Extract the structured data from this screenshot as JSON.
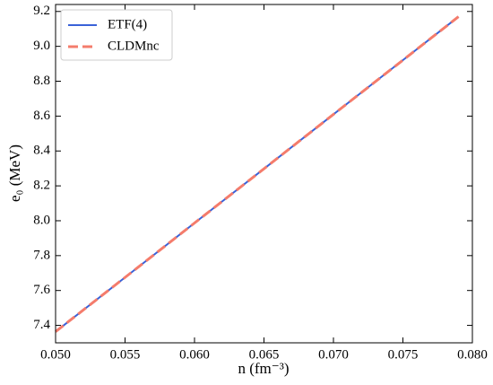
{
  "chart_data": {
    "type": "line",
    "xlabel": "n (fm⁻³)",
    "ylabel": "e₀ (MeV)",
    "x": [
      0.05,
      0.055,
      0.06,
      0.065,
      0.07,
      0.075,
      0.079
    ],
    "series": [
      {
        "name": "ETF(4)",
        "color": "#3a62d8",
        "linestyle": "solid",
        "values": [
          7.364,
          7.675,
          7.987,
          8.298,
          8.61,
          8.921,
          9.17
        ]
      },
      {
        "name": "CLDMnc",
        "color": "#f47c6c",
        "linestyle": "dashed",
        "values": [
          7.364,
          7.675,
          7.987,
          8.298,
          8.61,
          8.921,
          9.17
        ]
      }
    ],
    "xlim": [
      0.05,
      0.08
    ],
    "xticks": [
      {
        "value": 0.05,
        "label": "0.050"
      },
      {
        "value": 0.055,
        "label": "0.055"
      },
      {
        "value": 0.06,
        "label": "0.060"
      },
      {
        "value": 0.065,
        "label": "0.065"
      },
      {
        "value": 0.07,
        "label": "0.070"
      },
      {
        "value": 0.075,
        "label": "0.075"
      },
      {
        "value": 0.08,
        "label": "0.080"
      }
    ],
    "ylim": [
      7.3,
      9.24
    ],
    "yticks": [
      7.4,
      7.6,
      7.8,
      {
        "value": 8.0,
        "label": "8.0"
      },
      8.2,
      8.4,
      8.6,
      8.8,
      {
        "value": 9.0,
        "label": "9.0"
      },
      9.2
    ],
    "legend": "upper left",
    "grid": false
  }
}
